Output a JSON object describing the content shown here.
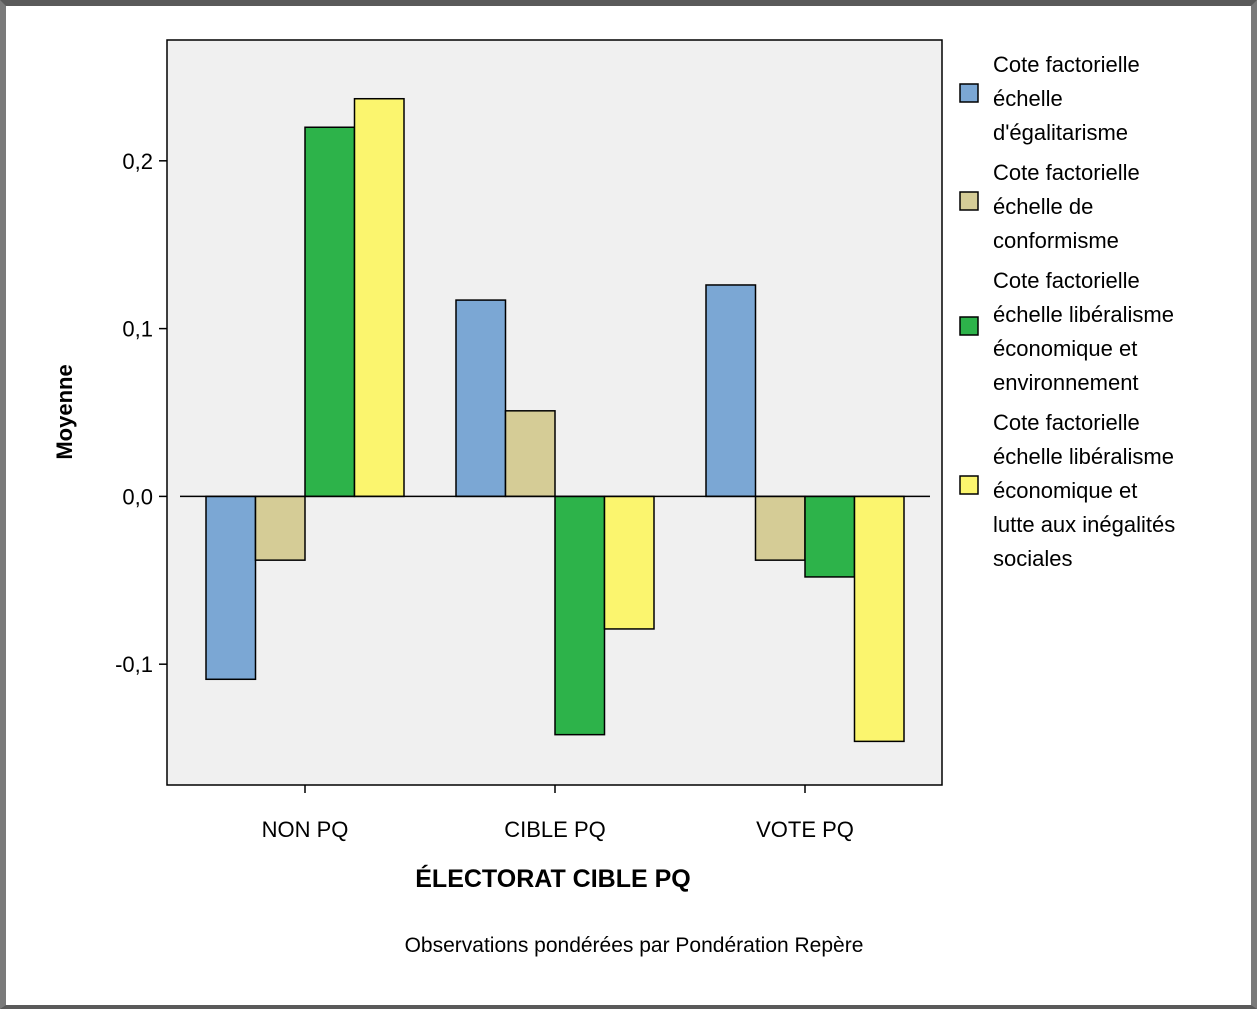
{
  "chart_data": {
    "type": "bar",
    "categories": [
      "NON PQ",
      "CIBLE PQ",
      "VOTE PQ"
    ],
    "series": [
      {
        "name": "Cote factorielle échelle d'égalitarisme",
        "name_lines": [
          "Cote factorielle",
          "échelle",
          "d'égalitarisme"
        ],
        "color": "#7ba7d4",
        "values": [
          -0.109,
          0.117,
          0.126
        ]
      },
      {
        "name": "Cote factorielle échelle de conformisme",
        "name_lines": [
          "Cote factorielle",
          "échelle de",
          "conformisme"
        ],
        "color": "#d5cc96",
        "values": [
          -0.038,
          0.051,
          -0.038
        ]
      },
      {
        "name": "Cote factorielle échelle libéralisme économique et environnement",
        "name_lines": [
          "Cote factorielle",
          "échelle libéralisme",
          "économique et",
          "environnement"
        ],
        "color": "#2db34a",
        "values": [
          0.22,
          -0.142,
          -0.048
        ]
      },
      {
        "name": "Cote factorielle échelle libéralisme économique et lutte aux inégalités sociales",
        "name_lines": [
          "Cote factorielle",
          "échelle libéralisme",
          "économique et",
          "lutte aux inégalités",
          "sociales"
        ],
        "color": "#fbf56e",
        "values": [
          0.237,
          -0.079,
          -0.146
        ]
      }
    ],
    "ylabel": "Moyenne",
    "xlabel": "ÉLECTORAT CIBLE PQ",
    "ylim": [
      -0.172,
      0.272
    ],
    "yticks": [
      -0.1,
      0.0,
      0.1,
      0.2
    ],
    "ytick_labels": [
      "-0,1",
      "0,0",
      "0,1",
      "0,2"
    ],
    "grid": false,
    "legend_position": "right",
    "plot_background": "#f0f0f0",
    "footnote": "Observations pondérées par Pondération Repère"
  }
}
